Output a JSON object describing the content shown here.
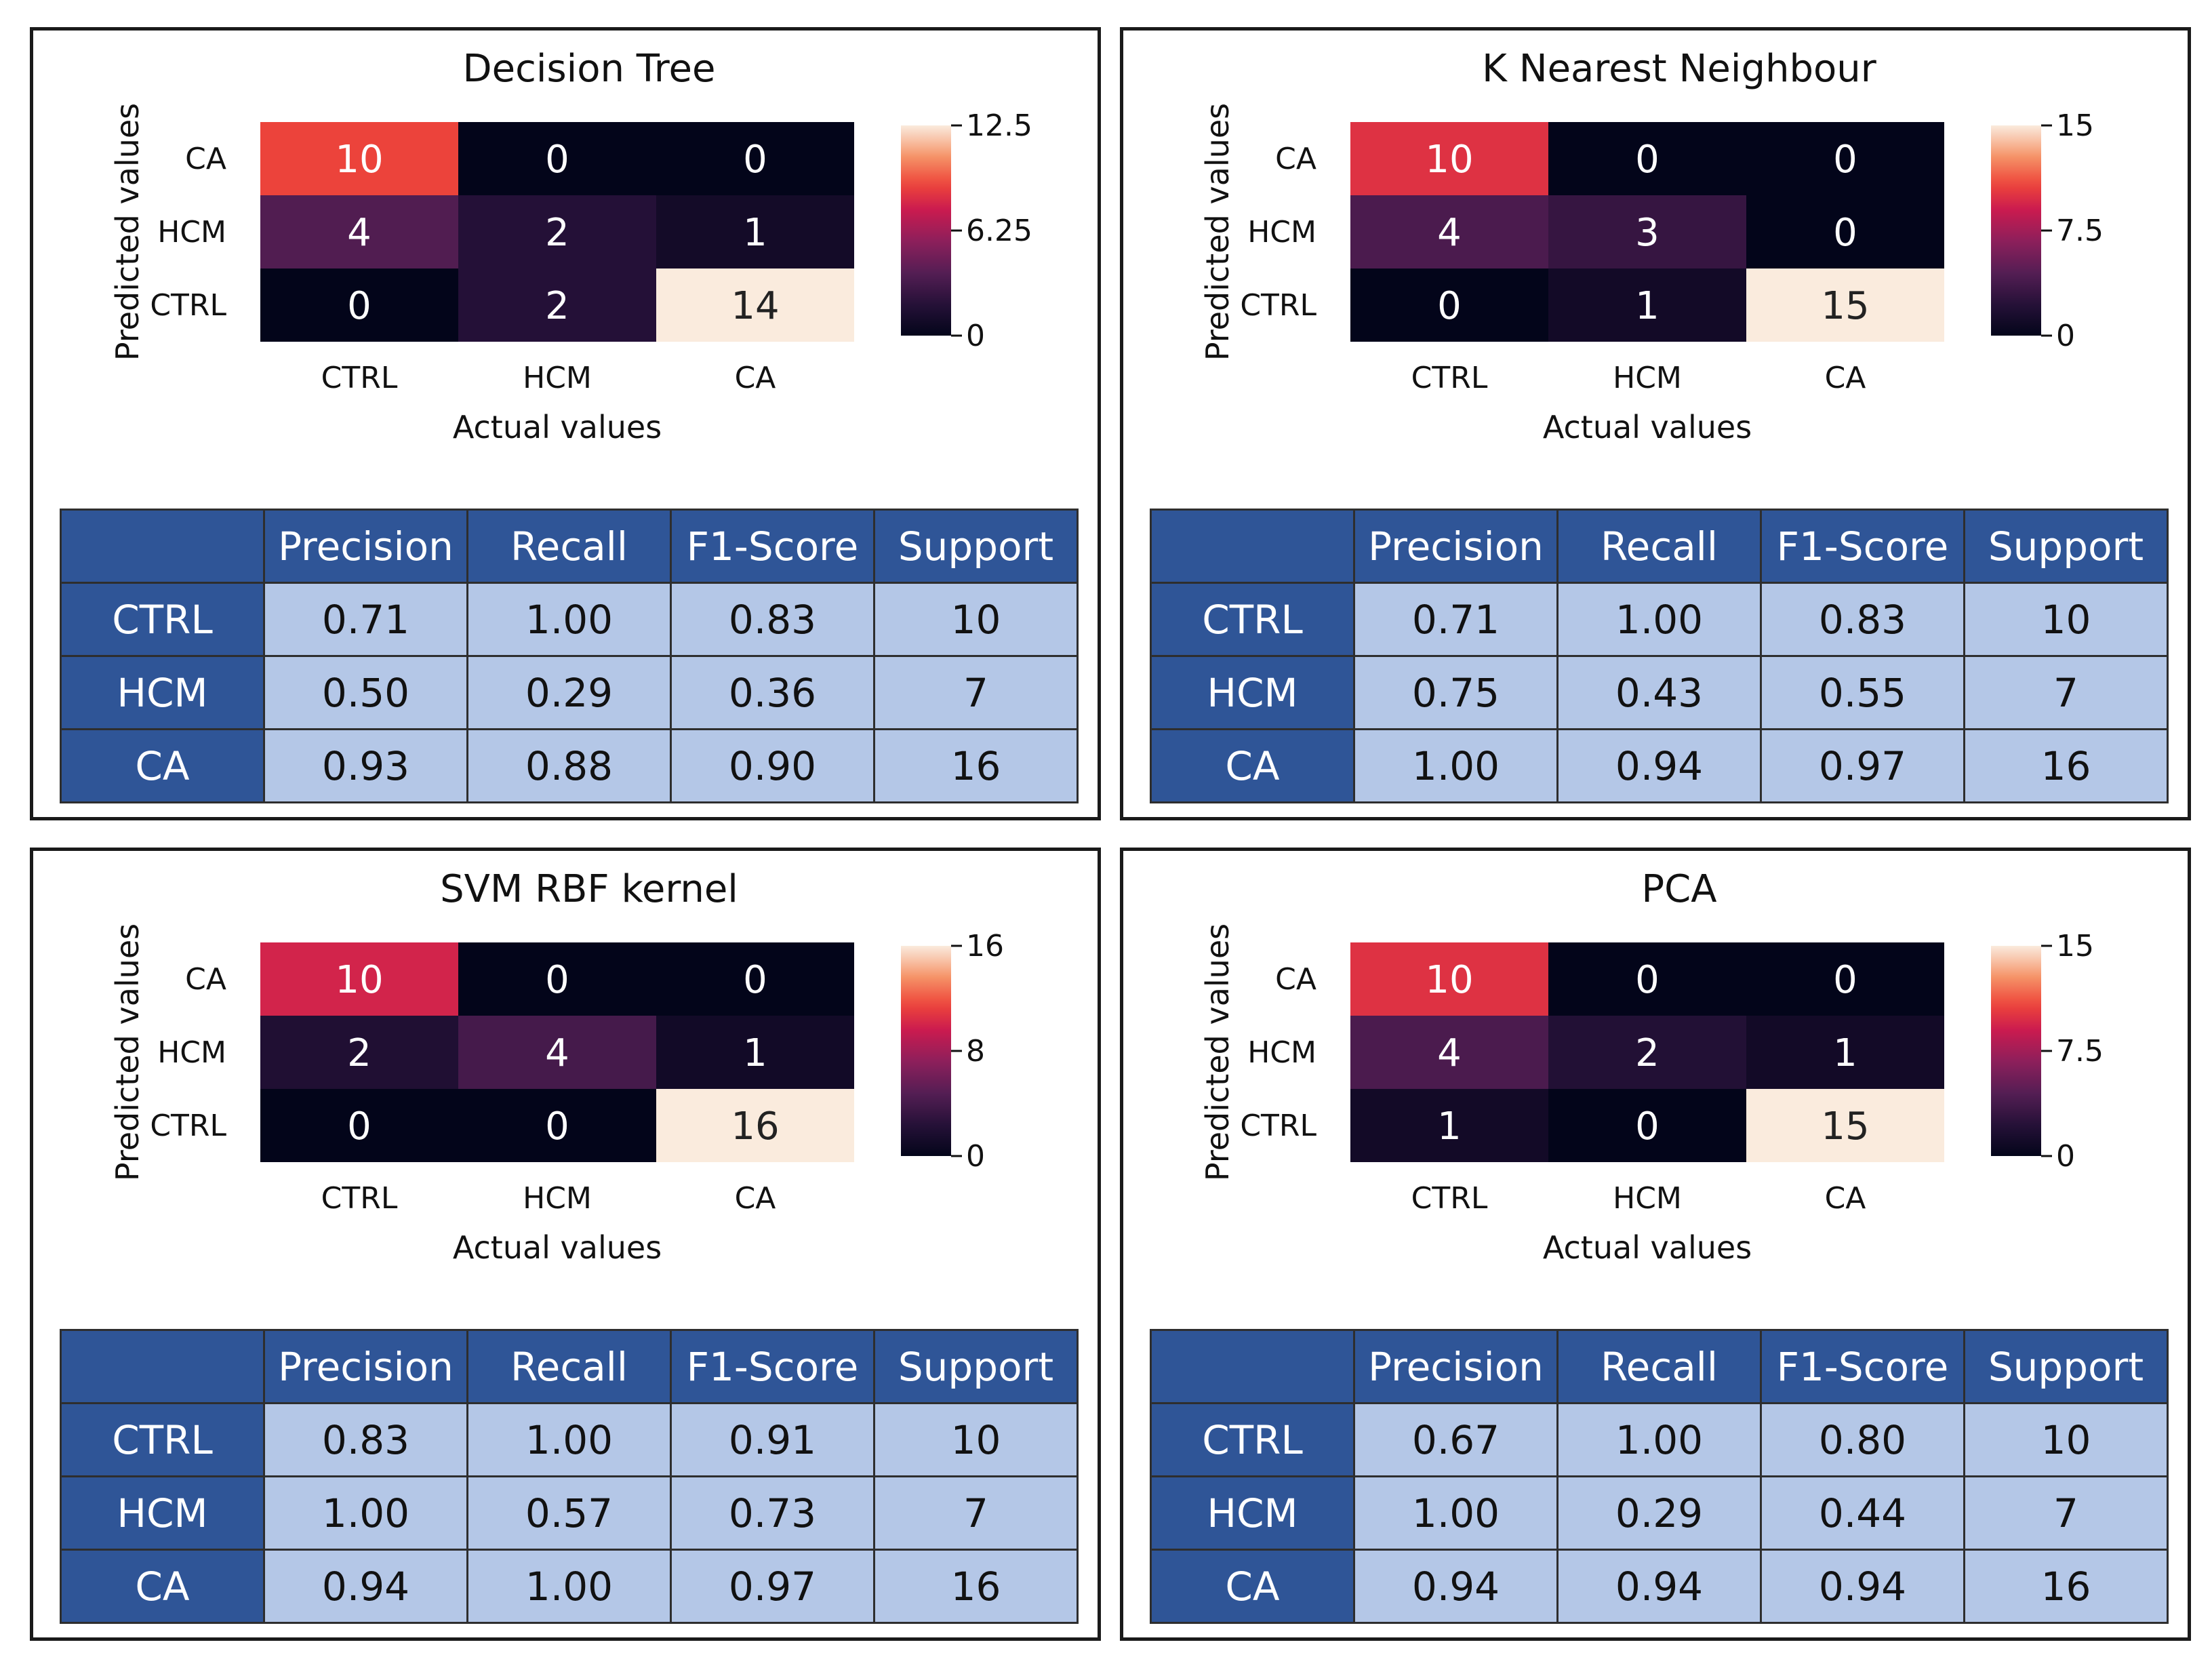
{
  "colors": {
    "header_blue": "#2f5597",
    "cell_light_blue": "#b4c7e7",
    "border": "#1a1a1a"
  },
  "classes": [
    "CTRL",
    "HCM",
    "CA"
  ],
  "metric_headers": [
    "Precision",
    "Recall",
    "F1-Score",
    "Support"
  ],
  "axis": {
    "xlabel": "Actual values",
    "ylabel": "Predicted values"
  },
  "chart_data": [
    {
      "type": "heatmap",
      "title": "Decision Tree",
      "xlabel": "Actual values",
      "ylabel": "Predicted values",
      "x_categories": [
        "CTRL",
        "HCM",
        "CA"
      ],
      "y_categories": [
        "CA",
        "HCM",
        "CTRL"
      ],
      "matrix": [
        [
          10,
          0,
          0
        ],
        [
          4,
          2,
          1
        ],
        [
          0,
          2,
          14
        ]
      ],
      "cell_labels": [
        [
          "10",
          "0",
          "0"
        ],
        [
          "4",
          "2",
          "1"
        ],
        [
          "0",
          "2",
          "14"
        ]
      ],
      "vmax": 14,
      "colorbar_range": [
        0,
        12.5
      ],
      "colorbar_ticks": [
        0,
        6.25,
        12.5
      ],
      "colorbar_tick_labels": [
        "0",
        "6.25",
        "12.5"
      ],
      "metrics_table": {
        "columns": [
          "",
          "Precision",
          "Recall",
          "F1-Score",
          "Support"
        ],
        "rows": [
          {
            "label": "CTRL",
            "values": [
              "0.71",
              "1.00",
              "0.83",
              "10"
            ]
          },
          {
            "label": "HCM",
            "values": [
              "0.50",
              "0.29",
              "0.36",
              "7"
            ]
          },
          {
            "label": "CA",
            "values": [
              "0.93",
              "0.88",
              "0.90",
              "16"
            ]
          }
        ]
      }
    },
    {
      "type": "heatmap",
      "title": "K Nearest Neighbour",
      "xlabel": "Actual values",
      "ylabel": "Predicted values",
      "x_categories": [
        "CTRL",
        "HCM",
        "CA"
      ],
      "y_categories": [
        "CA",
        "HCM",
        "CTRL"
      ],
      "matrix": [
        [
          10,
          0,
          0
        ],
        [
          4,
          3,
          0
        ],
        [
          0,
          1,
          15
        ]
      ],
      "cell_labels": [
        [
          "10",
          "0",
          "0"
        ],
        [
          "4",
          "3",
          "0"
        ],
        [
          "0",
          "1",
          "15"
        ]
      ],
      "vmax": 15,
      "colorbar_range": [
        0,
        15
      ],
      "colorbar_ticks": [
        0,
        7.5,
        15
      ],
      "colorbar_tick_labels": [
        "0",
        "7.5",
        "15"
      ],
      "metrics_table": {
        "columns": [
          "",
          "Precision",
          "Recall",
          "F1-Score",
          "Support"
        ],
        "rows": [
          {
            "label": "CTRL",
            "values": [
              "0.71",
              "1.00",
              "0.83",
              "10"
            ]
          },
          {
            "label": "HCM",
            "values": [
              "0.75",
              "0.43",
              "0.55",
              "7"
            ]
          },
          {
            "label": "CA",
            "values": [
              "1.00",
              "0.94",
              "0.97",
              "16"
            ]
          }
        ]
      }
    },
    {
      "type": "heatmap",
      "title": "SVM RBF kernel",
      "xlabel": "Actual values",
      "ylabel": "Predicted values",
      "x_categories": [
        "CTRL",
        "HCM",
        "CA"
      ],
      "y_categories": [
        "CA",
        "HCM",
        "CTRL"
      ],
      "matrix": [
        [
          10,
          0,
          0
        ],
        [
          2,
          4,
          1
        ],
        [
          0,
          0,
          16
        ]
      ],
      "cell_labels": [
        [
          "10",
          "0",
          "0"
        ],
        [
          "2",
          "4",
          "1"
        ],
        [
          "0",
          "0",
          "16"
        ]
      ],
      "vmax": 16,
      "colorbar_range": [
        0,
        16
      ],
      "colorbar_ticks": [
        0,
        8,
        16
      ],
      "colorbar_tick_labels": [
        "0",
        "8",
        "16"
      ],
      "metrics_table": {
        "columns": [
          "",
          "Precision",
          "Recall",
          "F1-Score",
          "Support"
        ],
        "rows": [
          {
            "label": "CTRL",
            "values": [
              "0.83",
              "1.00",
              "0.91",
              "10"
            ]
          },
          {
            "label": "HCM",
            "values": [
              "1.00",
              "0.57",
              "0.73",
              "7"
            ]
          },
          {
            "label": "CA",
            "values": [
              "0.94",
              "1.00",
              "0.97",
              "16"
            ]
          }
        ]
      }
    },
    {
      "type": "heatmap",
      "title": "PCA",
      "xlabel": "Actual values",
      "ylabel": "Predicted values",
      "x_categories": [
        "CTRL",
        "HCM",
        "CA"
      ],
      "y_categories": [
        "CA",
        "HCM",
        "CTRL"
      ],
      "matrix": [
        [
          10,
          0,
          0
        ],
        [
          4,
          2,
          1
        ],
        [
          1,
          0,
          15
        ]
      ],
      "cell_labels": [
        [
          "10",
          "0",
          "0"
        ],
        [
          "4",
          "2",
          "1"
        ],
        [
          "1",
          "0",
          "15"
        ]
      ],
      "vmax": 15,
      "colorbar_range": [
        0,
        15
      ],
      "colorbar_ticks": [
        0,
        7.5,
        15
      ],
      "colorbar_tick_labels": [
        "0",
        "7.5",
        "15"
      ],
      "metrics_table": {
        "columns": [
          "",
          "Precision",
          "Recall",
          "F1-Score",
          "Support"
        ],
        "rows": [
          {
            "label": "CTRL",
            "values": [
              "0.67",
              "1.00",
              "0.80",
              "10"
            ]
          },
          {
            "label": "HCM",
            "values": [
              "1.00",
              "0.29",
              "0.44",
              "7"
            ]
          },
          {
            "label": "CA",
            "values": [
              "0.94",
              "0.94",
              "0.94",
              "16"
            ]
          }
        ]
      }
    }
  ]
}
